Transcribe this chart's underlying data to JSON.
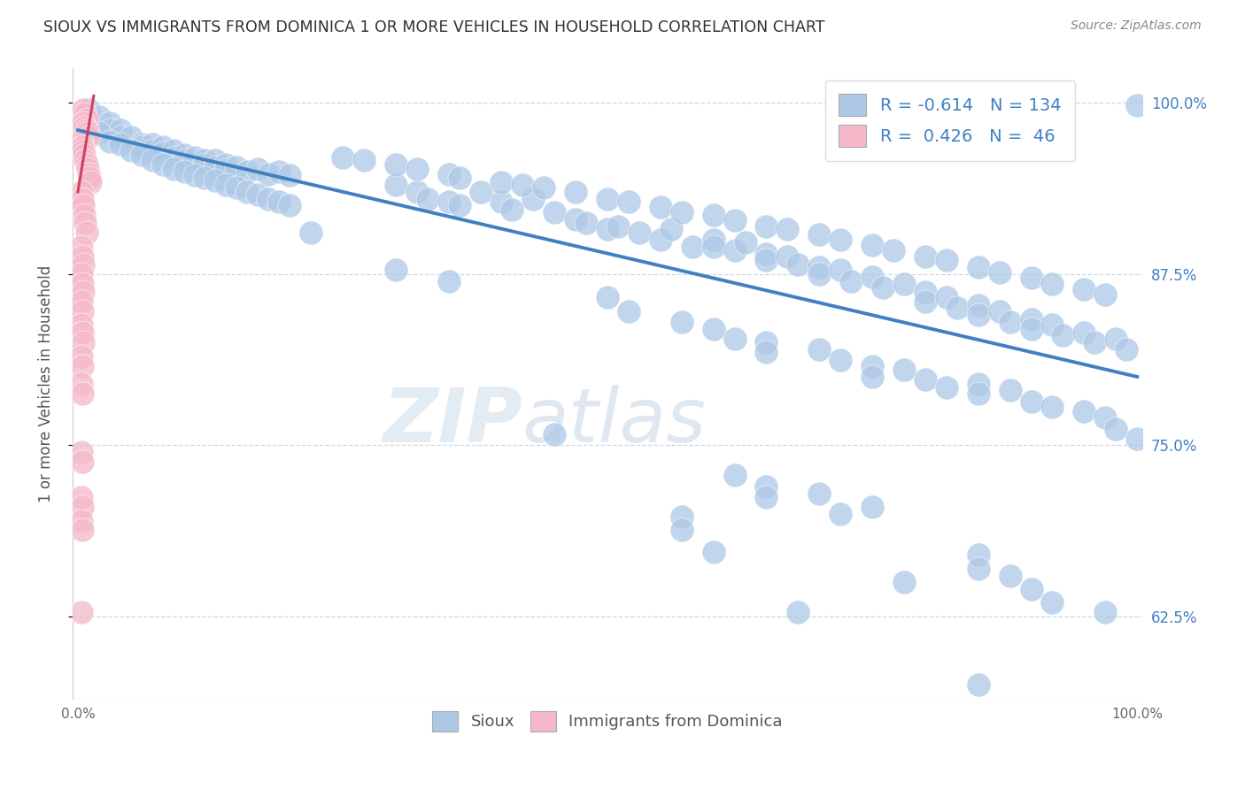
{
  "title": "SIOUX VS IMMIGRANTS FROM DOMINICA 1 OR MORE VEHICLES IN HOUSEHOLD CORRELATION CHART",
  "source": "Source: ZipAtlas.com",
  "ylabel": "1 or more Vehicles in Household",
  "watermark": "ZIPatlas",
  "blue_color": "#adc8e6",
  "pink_color": "#f5b8c8",
  "blue_line_color": "#4080c0",
  "pink_line_color": "#d04060",
  "grid_color": "#c8d8e8",
  "title_color": "#303030",
  "right_tick_color": "#4080c0",
  "blue_scatter": [
    [
      0.01,
      0.995
    ],
    [
      0.01,
      0.99
    ],
    [
      0.02,
      0.99
    ],
    [
      0.03,
      0.985
    ],
    [
      0.03,
      0.98
    ],
    [
      0.04,
      0.98
    ],
    [
      0.04,
      0.975
    ],
    [
      0.05,
      0.975
    ],
    [
      0.06,
      0.97
    ],
    [
      0.06,
      0.968
    ],
    [
      0.07,
      0.97
    ],
    [
      0.07,
      0.965
    ],
    [
      0.08,
      0.968
    ],
    [
      0.08,
      0.963
    ],
    [
      0.09,
      0.965
    ],
    [
      0.09,
      0.96
    ],
    [
      0.1,
      0.962
    ],
    [
      0.1,
      0.958
    ],
    [
      0.11,
      0.96
    ],
    [
      0.12,
      0.958
    ],
    [
      0.12,
      0.955
    ],
    [
      0.13,
      0.958
    ],
    [
      0.13,
      0.953
    ],
    [
      0.14,
      0.955
    ],
    [
      0.14,
      0.951
    ],
    [
      0.15,
      0.953
    ],
    [
      0.16,
      0.95
    ],
    [
      0.17,
      0.952
    ],
    [
      0.18,
      0.948
    ],
    [
      0.19,
      0.95
    ],
    [
      0.2,
      0.947
    ],
    [
      0.02,
      0.978
    ],
    [
      0.03,
      0.972
    ],
    [
      0.04,
      0.97
    ],
    [
      0.05,
      0.965
    ],
    [
      0.06,
      0.962
    ],
    [
      0.07,
      0.958
    ],
    [
      0.08,
      0.955
    ],
    [
      0.09,
      0.952
    ],
    [
      0.1,
      0.95
    ],
    [
      0.11,
      0.947
    ],
    [
      0.12,
      0.945
    ],
    [
      0.13,
      0.943
    ],
    [
      0.14,
      0.94
    ],
    [
      0.15,
      0.938
    ],
    [
      0.16,
      0.935
    ],
    [
      0.17,
      0.933
    ],
    [
      0.18,
      0.93
    ],
    [
      0.19,
      0.928
    ],
    [
      0.2,
      0.925
    ],
    [
      0.3,
      0.94
    ],
    [
      0.32,
      0.935
    ],
    [
      0.33,
      0.93
    ],
    [
      0.35,
      0.928
    ],
    [
      0.36,
      0.925
    ],
    [
      0.38,
      0.935
    ],
    [
      0.4,
      0.928
    ],
    [
      0.41,
      0.922
    ],
    [
      0.43,
      0.93
    ],
    [
      0.45,
      0.92
    ],
    [
      0.47,
      0.915
    ],
    [
      0.48,
      0.912
    ],
    [
      0.5,
      0.908
    ],
    [
      0.51,
      0.91
    ],
    [
      0.53,
      0.905
    ],
    [
      0.55,
      0.9
    ],
    [
      0.56,
      0.908
    ],
    [
      0.58,
      0.895
    ],
    [
      0.6,
      0.9
    ],
    [
      0.6,
      0.895
    ],
    [
      0.62,
      0.892
    ],
    [
      0.63,
      0.898
    ],
    [
      0.65,
      0.89
    ],
    [
      0.65,
      0.885
    ],
    [
      0.67,
      0.888
    ],
    [
      0.68,
      0.882
    ],
    [
      0.7,
      0.88
    ],
    [
      0.7,
      0.875
    ],
    [
      0.72,
      0.878
    ],
    [
      0.73,
      0.87
    ],
    [
      0.75,
      0.873
    ],
    [
      0.76,
      0.865
    ],
    [
      0.78,
      0.868
    ],
    [
      0.8,
      0.862
    ],
    [
      0.8,
      0.855
    ],
    [
      0.82,
      0.858
    ],
    [
      0.83,
      0.85
    ],
    [
      0.85,
      0.852
    ],
    [
      0.85,
      0.845
    ],
    [
      0.87,
      0.848
    ],
    [
      0.88,
      0.84
    ],
    [
      0.9,
      0.842
    ],
    [
      0.9,
      0.835
    ],
    [
      0.92,
      0.838
    ],
    [
      0.93,
      0.83
    ],
    [
      0.95,
      0.832
    ],
    [
      0.96,
      0.825
    ],
    [
      0.98,
      0.828
    ],
    [
      0.99,
      0.82
    ],
    [
      1.0,
      0.998
    ],
    [
      0.25,
      0.96
    ],
    [
      0.27,
      0.958
    ],
    [
      0.3,
      0.955
    ],
    [
      0.32,
      0.952
    ],
    [
      0.35,
      0.948
    ],
    [
      0.36,
      0.945
    ],
    [
      0.4,
      0.942
    ],
    [
      0.42,
      0.94
    ],
    [
      0.44,
      0.938
    ],
    [
      0.47,
      0.935
    ],
    [
      0.5,
      0.93
    ],
    [
      0.52,
      0.928
    ],
    [
      0.55,
      0.924
    ],
    [
      0.57,
      0.92
    ],
    [
      0.6,
      0.918
    ],
    [
      0.62,
      0.914
    ],
    [
      0.65,
      0.91
    ],
    [
      0.67,
      0.908
    ],
    [
      0.7,
      0.904
    ],
    [
      0.72,
      0.9
    ],
    [
      0.75,
      0.896
    ],
    [
      0.77,
      0.892
    ],
    [
      0.8,
      0.888
    ],
    [
      0.82,
      0.885
    ],
    [
      0.85,
      0.88
    ],
    [
      0.87,
      0.876
    ],
    [
      0.9,
      0.872
    ],
    [
      0.92,
      0.868
    ],
    [
      0.95,
      0.864
    ],
    [
      0.97,
      0.86
    ],
    [
      0.35,
      0.87
    ],
    [
      0.5,
      0.858
    ],
    [
      0.52,
      0.848
    ],
    [
      0.57,
      0.84
    ],
    [
      0.6,
      0.835
    ],
    [
      0.62,
      0.828
    ],
    [
      0.65,
      0.825
    ],
    [
      0.65,
      0.818
    ],
    [
      0.7,
      0.82
    ],
    [
      0.72,
      0.812
    ],
    [
      0.75,
      0.808
    ],
    [
      0.75,
      0.8
    ],
    [
      0.78,
      0.805
    ],
    [
      0.8,
      0.798
    ],
    [
      0.82,
      0.792
    ],
    [
      0.85,
      0.795
    ],
    [
      0.85,
      0.788
    ],
    [
      0.88,
      0.79
    ],
    [
      0.9,
      0.782
    ],
    [
      0.92,
      0.778
    ],
    [
      0.95,
      0.775
    ],
    [
      0.97,
      0.77
    ],
    [
      0.98,
      0.762
    ],
    [
      1.0,
      0.755
    ],
    [
      0.22,
      0.905
    ],
    [
      0.3,
      0.878
    ],
    [
      0.45,
      0.758
    ],
    [
      0.57,
      0.698
    ],
    [
      0.57,
      0.688
    ],
    [
      0.62,
      0.728
    ],
    [
      0.65,
      0.72
    ],
    [
      0.65,
      0.712
    ],
    [
      0.7,
      0.715
    ],
    [
      0.72,
      0.7
    ],
    [
      0.75,
      0.705
    ],
    [
      0.78,
      0.65
    ],
    [
      0.85,
      0.67
    ],
    [
      0.85,
      0.66
    ],
    [
      0.88,
      0.655
    ],
    [
      0.9,
      0.645
    ],
    [
      0.92,
      0.635
    ],
    [
      0.97,
      0.628
    ],
    [
      0.6,
      0.672
    ],
    [
      0.68,
      0.628
    ],
    [
      0.85,
      0.575
    ]
  ],
  "pink_scatter": [
    [
      0.005,
      0.995
    ],
    [
      0.007,
      0.992
    ],
    [
      0.008,
      0.988
    ],
    [
      0.005,
      0.985
    ],
    [
      0.006,
      0.982
    ],
    [
      0.008,
      0.98
    ],
    [
      0.009,
      0.978
    ],
    [
      0.01,
      0.975
    ],
    [
      0.003,
      0.972
    ],
    [
      0.004,
      0.968
    ],
    [
      0.005,
      0.965
    ],
    [
      0.006,
      0.962
    ],
    [
      0.007,
      0.958
    ],
    [
      0.008,
      0.955
    ],
    [
      0.009,
      0.952
    ],
    [
      0.01,
      0.948
    ],
    [
      0.011,
      0.945
    ],
    [
      0.012,
      0.942
    ],
    [
      0.003,
      0.935
    ],
    [
      0.004,
      0.93
    ],
    [
      0.005,
      0.925
    ],
    [
      0.006,
      0.918
    ],
    [
      0.007,
      0.912
    ],
    [
      0.008,
      0.905
    ],
    [
      0.003,
      0.895
    ],
    [
      0.004,
      0.888
    ],
    [
      0.005,
      0.882
    ],
    [
      0.003,
      0.875
    ],
    [
      0.004,
      0.868
    ],
    [
      0.005,
      0.862
    ],
    [
      0.003,
      0.855
    ],
    [
      0.004,
      0.848
    ],
    [
      0.003,
      0.838
    ],
    [
      0.004,
      0.832
    ],
    [
      0.005,
      0.825
    ],
    [
      0.003,
      0.815
    ],
    [
      0.004,
      0.808
    ],
    [
      0.003,
      0.795
    ],
    [
      0.004,
      0.788
    ],
    [
      0.003,
      0.745
    ],
    [
      0.004,
      0.738
    ],
    [
      0.003,
      0.712
    ],
    [
      0.004,
      0.705
    ],
    [
      0.003,
      0.695
    ],
    [
      0.004,
      0.688
    ],
    [
      0.003,
      0.628
    ]
  ],
  "xlim": [
    -0.005,
    1.005
  ],
  "ylim": [
    0.565,
    1.025
  ],
  "yticks": [
    0.625,
    0.75,
    0.875,
    1.0
  ],
  "ytick_labels": [
    "62.5%",
    "75.0%",
    "87.5%",
    "100.0%"
  ],
  "xticks": [
    0.0,
    0.2,
    0.4,
    0.6,
    0.8,
    1.0
  ],
  "xtick_labels": [
    "0.0%",
    "",
    "",
    "",
    "",
    "100.0%"
  ],
  "blue_trendline_x": [
    0.0,
    1.0
  ],
  "blue_trendline_y": [
    0.98,
    0.8
  ],
  "pink_trendline_x": [
    0.0,
    0.015
  ],
  "pink_trendline_y": [
    0.935,
    1.005
  ]
}
